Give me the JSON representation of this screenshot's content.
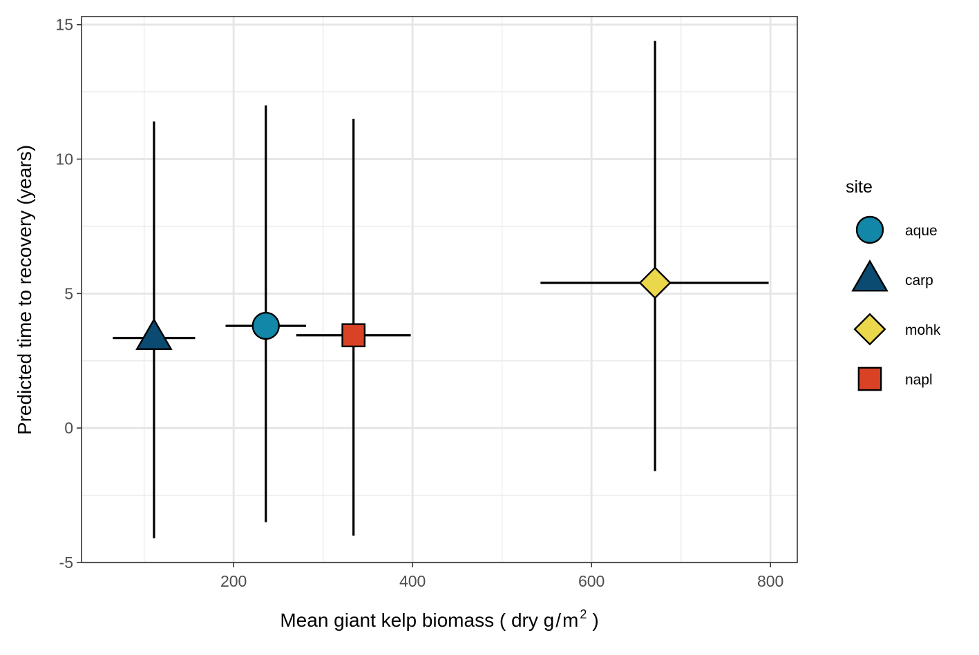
{
  "chart_data": {
    "type": "scatter",
    "xlabel_prefix": "Mean giant kelp biomass ( dry g",
    "xlabel_slash": "/",
    "xlabel_m": "m",
    "xlabel_sup": "2",
    "xlabel_suffix": ")",
    "ylabel": "Predicted time to recovery (years)",
    "xlim": [
      30,
      830
    ],
    "ylim": [
      -5,
      15.3
    ],
    "x_ticks": [
      200,
      400,
      600,
      800
    ],
    "y_ticks": [
      -5,
      0,
      5,
      10,
      15
    ],
    "x_minor": [
      100,
      300,
      500,
      700
    ],
    "y_minor": [
      -2.5,
      2.5,
      7.5,
      12.5
    ],
    "grid": true,
    "legend": {
      "title": "site",
      "position": "right",
      "entries": [
        {
          "label": "aque",
          "shape": "circle",
          "color": "#1287A8"
        },
        {
          "label": "carp",
          "shape": "triangle",
          "color": "#0B4B72"
        },
        {
          "label": "mohk",
          "shape": "diamond",
          "color": "#EBD74A"
        },
        {
          "label": "napl",
          "shape": "square",
          "color": "#DA4225"
        }
      ]
    },
    "points": [
      {
        "site": "carp",
        "x": 111,
        "y": 3.35,
        "x_min": 65,
        "x_max": 157,
        "y_min": -4.1,
        "y_max": 11.4
      },
      {
        "site": "aque",
        "x": 236,
        "y": 3.8,
        "x_min": 191,
        "x_max": 281,
        "y_min": -3.5,
        "y_max": 12.0
      },
      {
        "site": "napl",
        "x": 334,
        "y": 3.45,
        "x_min": 270,
        "x_max": 398,
        "y_min": -4.0,
        "y_max": 11.5
      },
      {
        "site": "mohk",
        "x": 671,
        "y": 5.4,
        "x_min": 543,
        "x_max": 798,
        "y_min": -1.6,
        "y_max": 14.4
      }
    ]
  }
}
